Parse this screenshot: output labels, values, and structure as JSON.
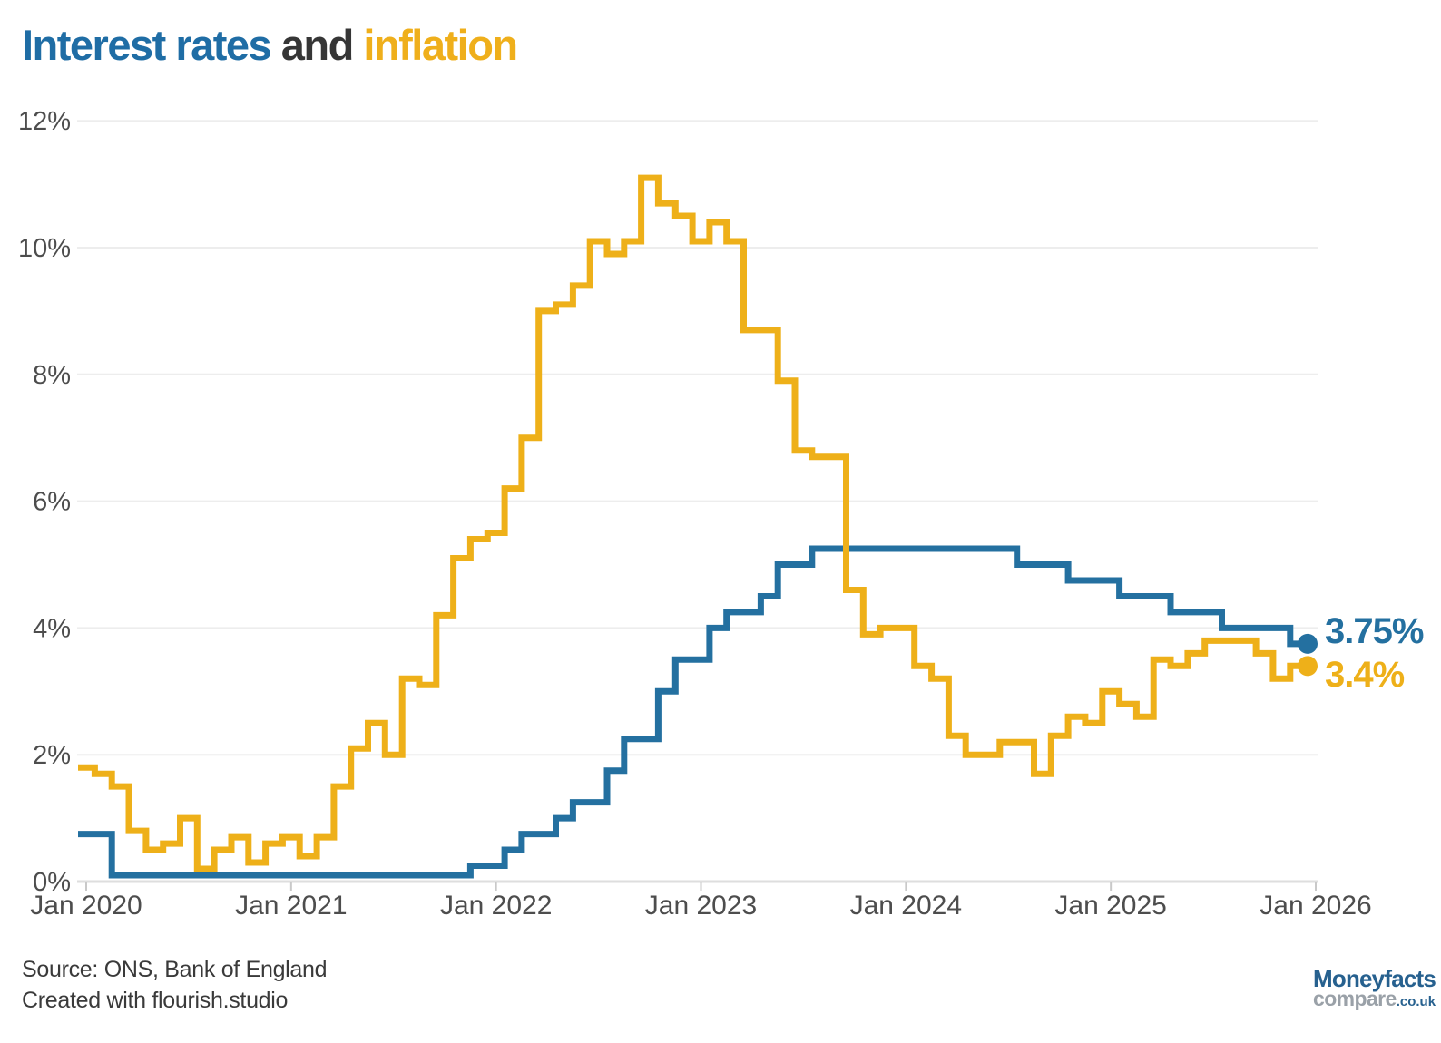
{
  "title": {
    "part1": "Interest rates",
    "part2": " and ",
    "part3": "inflation"
  },
  "chart_data": {
    "type": "line",
    "style": "step",
    "title": "Interest rates and inflation",
    "x_unit": "month",
    "x_start": "Jan 2020",
    "x_end": "Dec 2025",
    "x_tick_labels": [
      "Jan 2020",
      "Jan 2021",
      "Jan 2022",
      "Jan 2023",
      "Jan 2024",
      "Jan 2025",
      "Jan 2026"
    ],
    "y_tick_labels": [
      "0%",
      "2%",
      "4%",
      "6%",
      "8%",
      "10%",
      "12%"
    ],
    "ylim": [
      0,
      12
    ],
    "grid": "horizontal",
    "legend_position": "title-colored-words",
    "series": [
      {
        "name": "Interest rates",
        "color": "#2470a0",
        "end_label": "3.75%",
        "values": [
          0.75,
          0.75,
          0.1,
          0.1,
          0.1,
          0.1,
          0.1,
          0.1,
          0.1,
          0.1,
          0.1,
          0.1,
          0.1,
          0.1,
          0.1,
          0.1,
          0.1,
          0.1,
          0.1,
          0.1,
          0.1,
          0.1,
          0.1,
          0.25,
          0.25,
          0.5,
          0.75,
          0.75,
          1.0,
          1.25,
          1.25,
          1.75,
          2.25,
          2.25,
          3.0,
          3.5,
          3.5,
          4.0,
          4.25,
          4.25,
          4.5,
          5.0,
          5.0,
          5.25,
          5.25,
          5.25,
          5.25,
          5.25,
          5.25,
          5.25,
          5.25,
          5.25,
          5.25,
          5.25,
          5.25,
          5.0,
          5.0,
          5.0,
          4.75,
          4.75,
          4.75,
          4.5,
          4.5,
          4.5,
          4.25,
          4.25,
          4.25,
          4.0,
          4.0,
          4.0,
          4.0,
          3.75
        ]
      },
      {
        "name": "Inflation",
        "color": "#eeb019",
        "end_label": "3.4%",
        "values": [
          1.8,
          1.7,
          1.5,
          0.8,
          0.5,
          0.6,
          1.0,
          0.2,
          0.5,
          0.7,
          0.3,
          0.6,
          0.7,
          0.4,
          0.7,
          1.5,
          2.1,
          2.5,
          2.0,
          3.2,
          3.1,
          4.2,
          5.1,
          5.4,
          5.5,
          6.2,
          7.0,
          9.0,
          9.1,
          9.4,
          10.1,
          9.9,
          10.1,
          11.1,
          10.7,
          10.5,
          10.1,
          10.4,
          10.1,
          8.7,
          8.7,
          7.9,
          6.8,
          6.7,
          6.7,
          4.6,
          3.9,
          4.0,
          4.0,
          3.4,
          3.2,
          2.3,
          2.0,
          2.0,
          2.2,
          2.2,
          1.7,
          2.3,
          2.6,
          2.5,
          3.0,
          2.8,
          2.6,
          3.5,
          3.4,
          3.6,
          3.8,
          3.8,
          3.8,
          3.6,
          3.2,
          3.4
        ]
      }
    ]
  },
  "footer": {
    "source": "Source: ONS, Bank of England",
    "created": "Created with flourish.studio"
  },
  "logo": {
    "name": "Moneyfacts",
    "compare": "compare",
    "tld": ".co.uk"
  }
}
